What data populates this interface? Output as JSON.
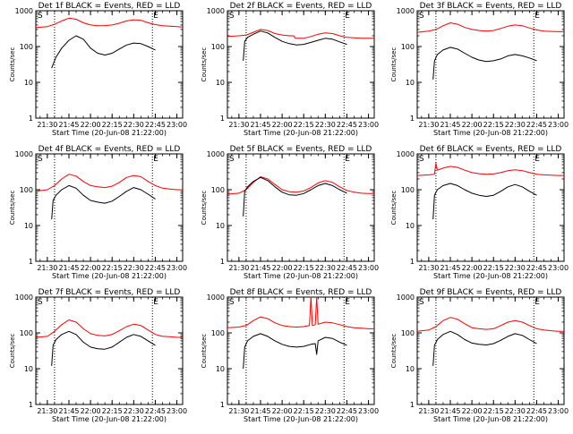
{
  "figure": {
    "x_axis_title": "Start Time (20-Jun-08 21:22:00)",
    "y_axis_title": "Counts/sec",
    "x_tick_labels": [
      "21:30",
      "21:45",
      "22:00",
      "22:15",
      "22:30",
      "22:45",
      "23:00"
    ],
    "y_tick_labels": [
      "1",
      "10",
      "100",
      "1000"
    ],
    "marker_start_label": "S",
    "marker_end_label": "E",
    "colors": {
      "events": "#000000",
      "lld": "#ff0000",
      "frame": "#000000"
    }
  },
  "chart_data": [
    {
      "type": "line",
      "title": "Det 1f BLACK = Events, RED = LLD",
      "xlim": [
        "21:22",
        "23:04"
      ],
      "ylim": [
        1,
        1000
      ],
      "yscale": "log",
      "grid": false,
      "markers": [
        "21:35",
        "22:43"
      ],
      "series": [
        {
          "name": "Events",
          "x": [
            "21:33",
            "21:36",
            "21:40",
            "21:45",
            "21:50",
            "21:55",
            "22:00",
            "22:05",
            "22:10",
            "22:15",
            "22:20",
            "22:25",
            "22:30",
            "22:35",
            "22:40",
            "22:45"
          ],
          "values": [
            25,
            50,
            90,
            150,
            200,
            160,
            90,
            65,
            58,
            65,
            85,
            110,
            125,
            120,
            100,
            80
          ]
        },
        {
          "name": "LLD",
          "x": [
            "21:22",
            "21:30",
            "21:35",
            "21:40",
            "21:45",
            "21:50",
            "21:55",
            "22:00",
            "22:05",
            "22:10",
            "22:15",
            "22:20",
            "22:25",
            "22:30",
            "22:35",
            "22:40",
            "22:45",
            "22:50",
            "22:55",
            "23:00",
            "23:04"
          ],
          "values": [
            340,
            360,
            420,
            520,
            620,
            580,
            460,
            400,
            380,
            385,
            400,
            450,
            520,
            560,
            540,
            460,
            410,
            380,
            370,
            360,
            350
          ]
        }
      ]
    },
    {
      "type": "line",
      "title": "Det 2f BLACK = Events, RED = LLD",
      "xlim": [
        "21:22",
        "23:04"
      ],
      "ylim": [
        1,
        1000
      ],
      "yscale": "log",
      "grid": false,
      "markers": [
        "21:35",
        "22:43"
      ],
      "series": [
        {
          "name": "Events",
          "x": [
            "21:33",
            "21:34",
            "21:36",
            "21:40",
            "21:45",
            "21:50",
            "21:55",
            "22:00",
            "22:05",
            "22:08",
            "22:10",
            "22:15",
            "22:20",
            "22:25",
            "22:30",
            "22:35",
            "22:40",
            "22:45"
          ],
          "values": [
            40,
            140,
            180,
            220,
            270,
            240,
            180,
            140,
            120,
            115,
            110,
            115,
            130,
            150,
            170,
            160,
            135,
            115
          ]
        },
        {
          "name": "LLD",
          "x": [
            "21:22",
            "21:30",
            "21:35",
            "21:40",
            "21:45",
            "21:50",
            "21:55",
            "22:00",
            "22:05",
            "22:08",
            "22:09",
            "22:15",
            "22:20",
            "22:25",
            "22:30",
            "22:35",
            "22:40",
            "22:45",
            "22:50",
            "22:55",
            "23:00",
            "23:04"
          ],
          "values": [
            190,
            200,
            210,
            250,
            300,
            280,
            230,
            210,
            200,
            200,
            170,
            170,
            190,
            220,
            240,
            230,
            200,
            180,
            175,
            170,
            170,
            170
          ]
        }
      ]
    },
    {
      "type": "line",
      "title": "Det 3f BLACK = Events, RED = LLD",
      "xlim": [
        "21:22",
        "23:04"
      ],
      "ylim": [
        1,
        1000
      ],
      "yscale": "log",
      "grid": false,
      "markers": [
        "21:35",
        "22:43"
      ],
      "series": [
        {
          "name": "Events",
          "x": [
            "21:33",
            "21:34",
            "21:36",
            "21:40",
            "21:45",
            "21:50",
            "21:55",
            "22:00",
            "22:05",
            "22:10",
            "22:15",
            "22:20",
            "22:25",
            "22:30",
            "22:35",
            "22:40",
            "22:45"
          ],
          "values": [
            12,
            40,
            60,
            80,
            95,
            85,
            65,
            50,
            42,
            38,
            40,
            45,
            55,
            60,
            55,
            48,
            40
          ]
        },
        {
          "name": "LLD",
          "x": [
            "21:22",
            "21:30",
            "21:35",
            "21:40",
            "21:45",
            "21:50",
            "21:55",
            "22:00",
            "22:05",
            "22:10",
            "22:15",
            "22:20",
            "22:25",
            "22:30",
            "22:35",
            "22:40",
            "22:45",
            "22:50",
            "22:55",
            "23:00",
            "23:04"
          ],
          "values": [
            250,
            270,
            300,
            380,
            460,
            420,
            340,
            300,
            280,
            270,
            280,
            320,
            370,
            400,
            380,
            330,
            290,
            270,
            265,
            260,
            260
          ]
        }
      ]
    },
    {
      "type": "line",
      "title": "Det 4f BLACK = Events, RED = LLD",
      "xlim": [
        "21:22",
        "23:04"
      ],
      "ylim": [
        1,
        1000
      ],
      "yscale": "log",
      "grid": false,
      "markers": [
        "21:35",
        "22:43"
      ],
      "series": [
        {
          "name": "Events",
          "x": [
            "21:33",
            "21:34",
            "21:36",
            "21:40",
            "21:45",
            "21:50",
            "21:55",
            "22:00",
            "22:05",
            "22:10",
            "22:15",
            "22:20",
            "22:25",
            "22:30",
            "22:35",
            "22:40",
            "22:45"
          ],
          "values": [
            15,
            50,
            70,
            100,
            130,
            110,
            70,
            50,
            45,
            42,
            48,
            65,
            90,
            115,
            100,
            75,
            55
          ]
        },
        {
          "name": "LLD",
          "x": [
            "21:22",
            "21:30",
            "21:35",
            "21:40",
            "21:45",
            "21:50",
            "21:55",
            "22:00",
            "22:05",
            "22:10",
            "22:15",
            "22:20",
            "22:25",
            "22:30",
            "22:35",
            "22:40",
            "22:45",
            "22:50",
            "22:55",
            "23:00",
            "23:04"
          ],
          "values": [
            90,
            100,
            130,
            200,
            270,
            240,
            170,
            130,
            120,
            115,
            125,
            160,
            220,
            250,
            230,
            170,
            130,
            110,
            105,
            100,
            100
          ]
        }
      ]
    },
    {
      "type": "line",
      "title": "Det 5f BLACK = Events, RED = LLD",
      "xlim": [
        "21:22",
        "23:04"
      ],
      "ylim": [
        1,
        1000
      ],
      "yscale": "log",
      "grid": false,
      "markers": [
        "21:35",
        "22:43"
      ],
      "series": [
        {
          "name": "Events",
          "x": [
            "21:33",
            "21:34",
            "21:36",
            "21:40",
            "21:45",
            "21:50",
            "21:55",
            "22:00",
            "22:05",
            "22:10",
            "22:15",
            "22:20",
            "22:25",
            "22:30",
            "22:35",
            "22:40",
            "22:45"
          ],
          "values": [
            18,
            90,
            120,
            170,
            220,
            180,
            120,
            85,
            72,
            70,
            78,
            100,
            130,
            150,
            130,
            100,
            80
          ]
        },
        {
          "name": "LLD",
          "x": [
            "21:22",
            "21:30",
            "21:35",
            "21:40",
            "21:45",
            "21:50",
            "21:55",
            "22:00",
            "22:05",
            "22:10",
            "22:15",
            "22:20",
            "22:25",
            "22:30",
            "22:35",
            "22:40",
            "22:45",
            "22:50",
            "22:55",
            "23:00",
            "23:04"
          ],
          "values": [
            75,
            80,
            100,
            160,
            230,
            200,
            140,
            100,
            88,
            85,
            92,
            115,
            155,
            180,
            160,
            120,
            95,
            85,
            80,
            78,
            78
          ]
        }
      ]
    },
    {
      "type": "line",
      "title": "Det 6f BLACK = Events, RED = LLD",
      "xlim": [
        "21:22",
        "23:04"
      ],
      "ylim": [
        1,
        1000
      ],
      "yscale": "log",
      "grid": false,
      "markers": [
        "21:35",
        "22:43"
      ],
      "series": [
        {
          "name": "Events",
          "x": [
            "21:33",
            "21:34",
            "21:36",
            "21:40",
            "21:45",
            "21:50",
            "21:55",
            "22:00",
            "22:05",
            "22:10",
            "22:15",
            "22:20",
            "22:25",
            "22:30",
            "22:35",
            "22:40",
            "22:45"
          ],
          "values": [
            15,
            70,
            100,
            130,
            150,
            130,
            100,
            80,
            70,
            65,
            70,
            90,
            120,
            140,
            120,
            90,
            70
          ]
        },
        {
          "name": "LLD",
          "x": [
            "21:22",
            "21:30",
            "21:34",
            "21:35",
            "21:36",
            "21:40",
            "21:45",
            "21:50",
            "21:55",
            "22:00",
            "22:05",
            "22:10",
            "22:15",
            "22:20",
            "22:25",
            "22:30",
            "22:35",
            "22:40",
            "22:45",
            "22:50",
            "22:55",
            "23:00",
            "23:04"
          ],
          "values": [
            250,
            260,
            270,
            550,
            350,
            400,
            450,
            420,
            350,
            300,
            280,
            270,
            275,
            300,
            340,
            360,
            340,
            300,
            270,
            260,
            255,
            250,
            250
          ]
        }
      ]
    },
    {
      "type": "line",
      "title": "Det 7f BLACK = Events, RED = LLD",
      "xlim": [
        "21:22",
        "23:04"
      ],
      "ylim": [
        1,
        1000
      ],
      "yscale": "log",
      "grid": false,
      "markers": [
        "21:35",
        "22:43"
      ],
      "series": [
        {
          "name": "Events",
          "x": [
            "21:33",
            "21:34",
            "21:36",
            "21:40",
            "21:45",
            "21:50",
            "21:55",
            "22:00",
            "22:05",
            "22:10",
            "22:15",
            "22:20",
            "22:25",
            "22:30",
            "22:35",
            "22:40",
            "22:45"
          ],
          "values": [
            12,
            45,
            65,
            90,
            110,
            90,
            55,
            40,
            36,
            35,
            40,
            55,
            75,
            90,
            80,
            60,
            45
          ]
        },
        {
          "name": "LLD",
          "x": [
            "21:22",
            "21:30",
            "21:35",
            "21:40",
            "21:45",
            "21:50",
            "21:55",
            "22:00",
            "22:05",
            "22:10",
            "22:15",
            "22:20",
            "22:25",
            "22:30",
            "22:35",
            "22:40",
            "22:45",
            "22:50",
            "22:55",
            "23:00",
            "23:04"
          ],
          "values": [
            75,
            80,
            110,
            170,
            230,
            200,
            130,
            95,
            85,
            82,
            90,
            115,
            150,
            175,
            160,
            120,
            90,
            80,
            78,
            75,
            75
          ]
        }
      ]
    },
    {
      "type": "line",
      "title": "Det 8f BLACK = Events, RED = LLD",
      "xlim": [
        "21:22",
        "23:04"
      ],
      "ylim": [
        1,
        1000
      ],
      "yscale": "log",
      "grid": false,
      "markers": [
        "21:35",
        "22:43"
      ],
      "series": [
        {
          "name": "Events",
          "x": [
            "21:33",
            "21:34",
            "21:36",
            "21:40",
            "21:45",
            "21:50",
            "21:55",
            "22:00",
            "22:05",
            "22:10",
            "22:15",
            "22:20",
            "22:23",
            "22:24",
            "22:25",
            "22:30",
            "22:35",
            "22:40",
            "22:45"
          ],
          "values": [
            10,
            40,
            60,
            80,
            95,
            80,
            60,
            48,
            42,
            40,
            42,
            48,
            50,
            25,
            60,
            75,
            70,
            55,
            45
          ]
        },
        {
          "name": "LLD",
          "x": [
            "21:22",
            "21:30",
            "21:35",
            "21:40",
            "21:45",
            "21:50",
            "21:55",
            "22:00",
            "22:05",
            "22:10",
            "22:15",
            "22:19",
            "22:20",
            "22:21",
            "22:23",
            "22:24",
            "22:25",
            "22:30",
            "22:35",
            "22:40",
            "22:45",
            "22:50",
            "22:55",
            "23:00",
            "23:04"
          ],
          "values": [
            140,
            145,
            160,
            220,
            280,
            250,
            190,
            160,
            150,
            145,
            150,
            160,
            1000,
            160,
            170,
            1000,
            175,
            200,
            190,
            170,
            150,
            140,
            135,
            130,
            130
          ]
        }
      ]
    },
    {
      "type": "line",
      "title": "Det 9f BLACK = Events, RED = LLD",
      "xlim": [
        "21:22",
        "23:04"
      ],
      "ylim": [
        1,
        1000
      ],
      "yscale": "log",
      "grid": false,
      "markers": [
        "21:35",
        "22:43"
      ],
      "series": [
        {
          "name": "Events",
          "x": [
            "21:33",
            "21:34",
            "21:36",
            "21:40",
            "21:45",
            "21:50",
            "21:55",
            "22:00",
            "22:05",
            "22:10",
            "22:15",
            "22:20",
            "22:25",
            "22:30",
            "22:35",
            "22:40",
            "22:45"
          ],
          "values": [
            12,
            45,
            65,
            90,
            110,
            90,
            65,
            52,
            48,
            46,
            50,
            62,
            80,
            95,
            85,
            65,
            50
          ]
        },
        {
          "name": "LLD",
          "x": [
            "21:22",
            "21:30",
            "21:35",
            "21:40",
            "21:45",
            "21:50",
            "21:55",
            "22:00",
            "22:05",
            "22:10",
            "22:15",
            "22:20",
            "22:25",
            "22:30",
            "22:35",
            "22:40",
            "22:45",
            "22:50",
            "22:55",
            "23:00",
            "23:04"
          ],
          "values": [
            110,
            120,
            150,
            220,
            270,
            240,
            180,
            140,
            130,
            125,
            130,
            160,
            200,
            220,
            200,
            160,
            130,
            120,
            115,
            110,
            110
          ]
        }
      ]
    }
  ]
}
